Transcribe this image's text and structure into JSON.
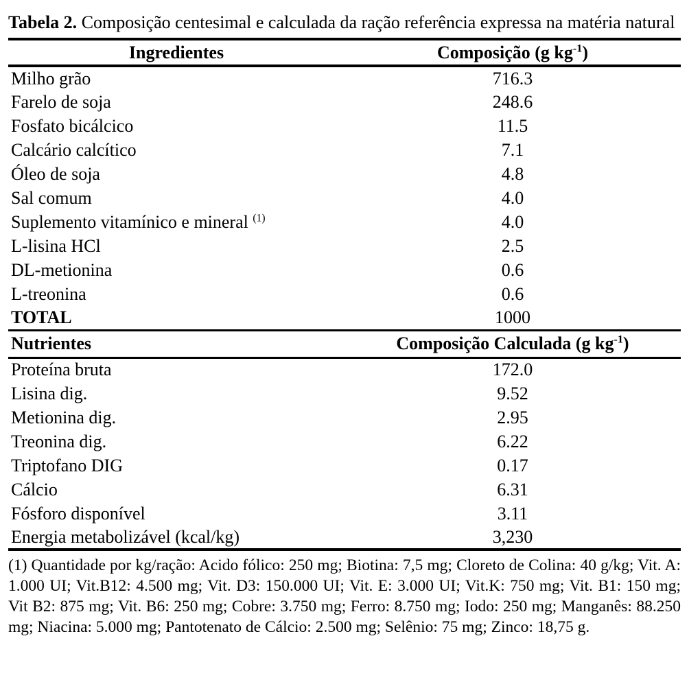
{
  "title": {
    "bold_part": "Tabela 2.",
    "rest_part": " Composição centesimal e calculada da ração referência expressa na matéria natural"
  },
  "table": {
    "ingredients": {
      "header": {
        "col1": "Ingredientes",
        "col2_pre": "Composição (g kg",
        "col2_sup": "-1",
        "col2_post": ")"
      },
      "rows": [
        {
          "name": "Milho grão",
          "sup": "",
          "value": "716.3"
        },
        {
          "name": "Farelo de soja",
          "sup": "",
          "value": "248.6"
        },
        {
          "name": "Fosfato bicálcico",
          "sup": "",
          "value": "11.5"
        },
        {
          "name": "Calcário calcítico",
          "sup": "",
          "value": "7.1"
        },
        {
          "name": "Óleo de soja",
          "sup": "",
          "value": "4.8"
        },
        {
          "name": "Sal comum",
          "sup": "",
          "value": "4.0"
        },
        {
          "name": "Suplemento vitamínico e mineral ",
          "sup": "(1)",
          "value": "4.0"
        },
        {
          "name": "L-lisina HCl",
          "sup": "",
          "value": "2.5"
        },
        {
          "name": "DL-metionina",
          "sup": "",
          "value": "0.6"
        },
        {
          "name": "L-treonina",
          "sup": "",
          "value": "0.6"
        },
        {
          "name": "TOTAL",
          "sup": "",
          "value": "1000"
        }
      ]
    },
    "nutrients": {
      "header": {
        "col1": "Nutrientes",
        "col2_pre": "Composição Calculada (g kg",
        "col2_sup": "-1",
        "col2_post": ")"
      },
      "rows": [
        {
          "name": "Proteína bruta",
          "value": "172.0"
        },
        {
          "name": "Lisina dig.",
          "value": "9.52"
        },
        {
          "name": "Metionina dig.",
          "value": "2.95"
        },
        {
          "name": "Treonina dig.",
          "value": "6.22"
        },
        {
          "name": "Triptofano DIG",
          "value": "0.17"
        },
        {
          "name": "Cálcio",
          "value": "6.31"
        },
        {
          "name": "Fósforo disponível",
          "value": "3.11"
        },
        {
          "name": "Energia metabolizável (kcal/kg)",
          "value": "3,230"
        }
      ]
    }
  },
  "footnote": {
    "text": "(1) Quantidade por kg/ração: Acido fólico: 250 mg; Biotina: 7,5 mg; Cloreto de Colina: 40 g/kg; Vit. A: 1.000 UI; Vit.B12: 4.500 mg; Vit. D3: 150.000 UI; Vit. E: 3.000 UI; Vit.K: 750 mg; Vit. B1: 150 mg; Vit B2: 875 mg; Vit. B6: 250 mg; Cobre: 3.750 mg; Ferro: 8.750 mg; Iodo: 250 mg; Manganês: 88.250 mg; Niacina: 5.000 mg; Pantotenato de Cálcio: 2.500 mg; Selênio: 75 mg; Zinco: 18,75 g."
  }
}
